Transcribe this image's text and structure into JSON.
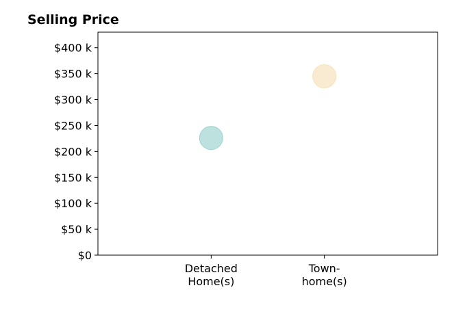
{
  "chart_data": {
    "type": "scatter",
    "title": "Selling Price",
    "xlabel": "",
    "ylabel": "",
    "categories": [
      [
        "Detached",
        "Home(s)"
      ],
      [
        "Town-",
        "home(s)"
      ]
    ],
    "yticks": [
      "$0",
      "$50 k",
      "$100 k",
      "$150 k",
      "$200 k",
      "$250 k",
      "$300 k",
      "$350 k",
      "$400 k"
    ],
    "ylim": [
      0,
      430
    ],
    "grid": false,
    "series": [
      {
        "points": [
          {
            "category": "Detached Home(s)",
            "y": 226,
            "color": "#9fd4d1"
          },
          {
            "category": "Town-home(s)",
            "y": 345,
            "color": "#f6e2bd"
          }
        ]
      }
    ]
  }
}
